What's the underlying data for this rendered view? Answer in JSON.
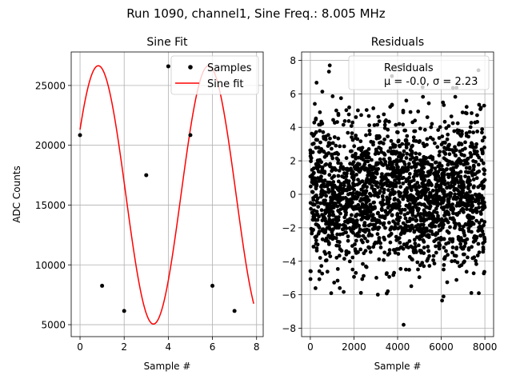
{
  "figure": {
    "suptitle": "Run 1090, channel1, Sine Freq.: 8.005 MHz"
  },
  "chart_data": [
    {
      "type": "line",
      "title": "Sine Fit",
      "xlabel": "Sample #",
      "ylabel": "ADC Counts",
      "xlim": [
        -0.4,
        8.3
      ],
      "ylim": [
        4000,
        27800
      ],
      "xticks": [
        0,
        2,
        4,
        6,
        8
      ],
      "yticks": [
        5000,
        10000,
        15000,
        20000,
        25000
      ],
      "grid": true,
      "legend_position": "upper right",
      "legend": [
        "Samples",
        "Sine fit"
      ],
      "series": [
        {
          "name": "Samples",
          "kind": "scatter",
          "color": "#000000",
          "x": [
            0,
            1,
            2,
            3,
            4,
            5,
            6,
            7
          ],
          "y": [
            20850,
            8250,
            6150,
            17500,
            26600,
            20850,
            8250,
            6150
          ]
        },
        {
          "name": "Sine fit",
          "kind": "line",
          "color": "#ff0000",
          "function": {
            "offset": 15850,
            "amplitude": 10800,
            "period_samples": 4.997,
            "phase_rad": 0.53,
            "x_range": [
              0,
              7.87
            ]
          }
        }
      ]
    },
    {
      "type": "scatter",
      "title": "Residuals",
      "xlabel": "Sample #",
      "ylabel": "",
      "xlim": [
        -400,
        8400
      ],
      "ylim": [
        -8.5,
        8.5
      ],
      "xticks": [
        0,
        2000,
        4000,
        6000,
        8000
      ],
      "yticks": [
        -8,
        -6,
        -4,
        -2,
        0,
        2,
        4,
        6,
        8
      ],
      "grid": true,
      "legend_position": "upper right",
      "legend_title": "Residuals",
      "legend_text": "μ = -0.0, σ = 2.23",
      "series": [
        {
          "name": "Residuals",
          "color": "#000000",
          "n_points": 8000,
          "mean": -0.0,
          "std": 2.23
        }
      ]
    }
  ]
}
